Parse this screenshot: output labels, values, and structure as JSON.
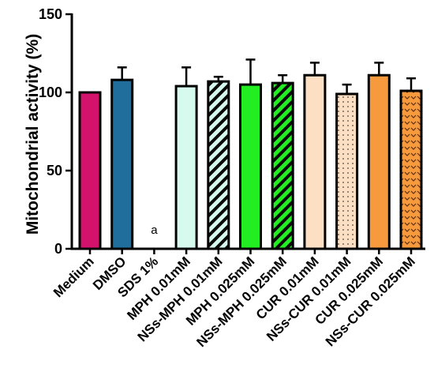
{
  "chart_data": {
    "type": "bar",
    "title": "",
    "xlabel": "",
    "ylabel": "Mitochondrial activity (%)",
    "ylim": [
      0,
      150
    ],
    "yticks": [
      0,
      50,
      100,
      150
    ],
    "grid": false,
    "legend": "none",
    "categories": [
      "Medium",
      "DMSO",
      "SDS 1%",
      "MPH 0.01mM",
      "NSs-MPH 0.01mM",
      "MPH 0.025mM",
      "NSs-MPH 0.025mM",
      "CUR 0.01mM",
      "NSs-CUR 0.01mM",
      "CUR 0.025mM",
      "NSs-CUR 0.025mM"
    ],
    "values": [
      100,
      108,
      0,
      104,
      107,
      105,
      106,
      111,
      99,
      111,
      101
    ],
    "errors": [
      0,
      8,
      0,
      12,
      3,
      16,
      5,
      8,
      6,
      8,
      8
    ],
    "colors": [
      "#d3136b",
      "#1f6e9c",
      "#ffffff",
      "#d6fbee",
      "#d6fbee",
      "#22ee22",
      "#22ee22",
      "#fde0c4",
      "#fde0c4",
      "#f79a3d",
      "#f79a3d"
    ],
    "patterns": [
      "solid",
      "solid",
      "none",
      "solid",
      "diagonal",
      "solid",
      "diagonal",
      "solid",
      "dots",
      "solid",
      "chevrons"
    ],
    "annotations": [
      {
        "category": "SDS 1%",
        "text": "a"
      }
    ]
  }
}
